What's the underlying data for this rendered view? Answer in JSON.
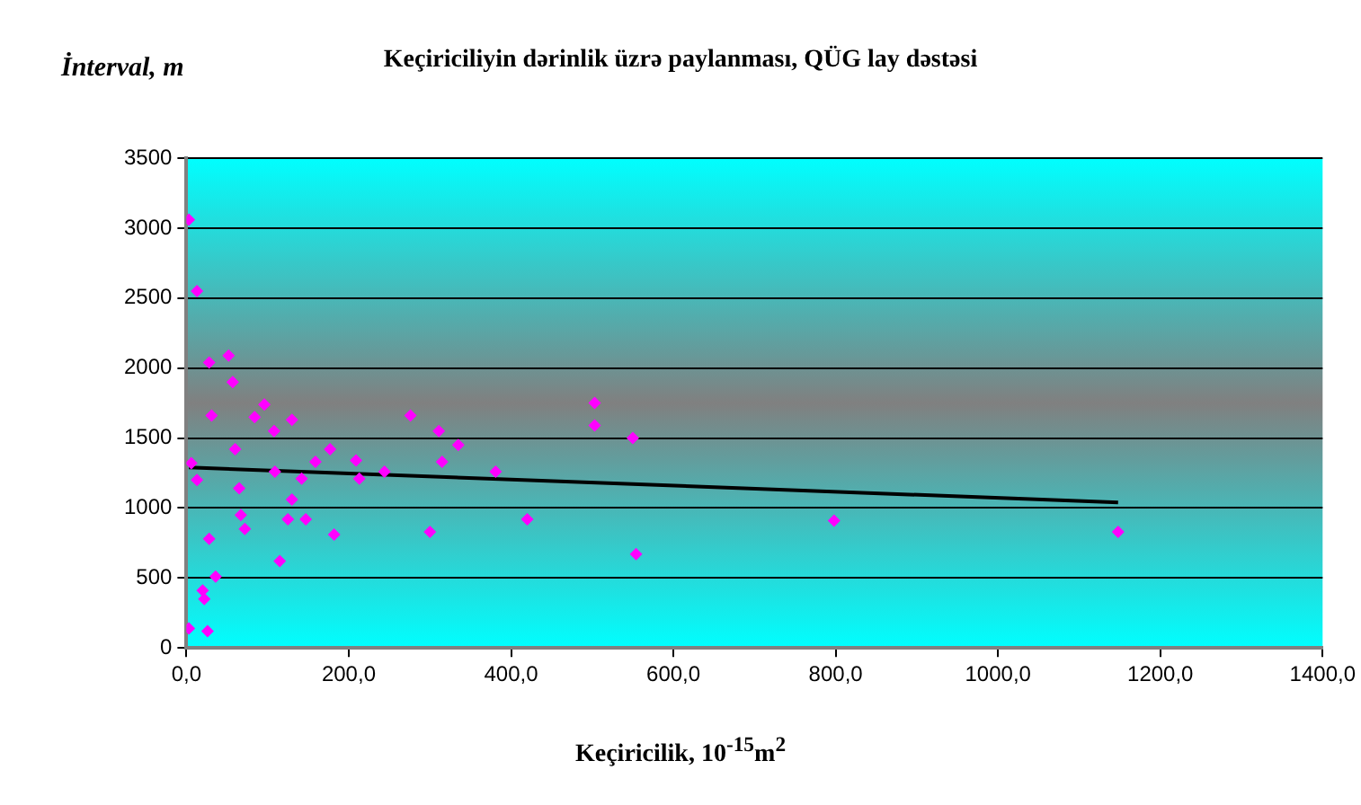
{
  "chart_data": {
    "type": "scatter",
    "title": "Keçiriciliyin dərinlik üzrə paylanması, QÜG lay dəstəsi",
    "xlabel": "Keçiricilik, 10$^{-15}$m$^{2}$",
    "ylabel": "İnterval, m",
    "xlim": [
      0,
      1400
    ],
    "xticks": [
      {
        "value": 0,
        "label": "0,0"
      },
      {
        "value": 200,
        "label": "200,0"
      },
      {
        "value": 400,
        "label": "400,0"
      },
      {
        "value": 600,
        "label": "600,0"
      },
      {
        "value": 800,
        "label": "800,0"
      },
      {
        "value": 1000,
        "label": "1000,0"
      },
      {
        "value": 1200,
        "label": "1200,0"
      },
      {
        "value": 1400,
        "label": "1400,0"
      }
    ],
    "ylim": [
      0,
      3500
    ],
    "yticks": [
      0,
      500,
      1000,
      1500,
      2000,
      2500,
      3000,
      3500
    ],
    "grid": "y",
    "legend": false,
    "series": [
      {
        "color": "#ff00ff",
        "marker": "diamond",
        "x": [
          3,
          13,
          28,
          52,
          57,
          31,
          96,
          84,
          130,
          108,
          60,
          177,
          6,
          13,
          109,
          159,
          142,
          209,
          213,
          244,
          276,
          311,
          315,
          300,
          65,
          130,
          67,
          72,
          125,
          147,
          182,
          28,
          115,
          36,
          20,
          22,
          3,
          26,
          335,
          381,
          420,
          503,
          503,
          550,
          554,
          798,
          1148
        ],
        "values": [
          3060,
          2550,
          2040,
          2090,
          1900,
          1660,
          1740,
          1650,
          1630,
          1550,
          1420,
          1420,
          1320,
          1200,
          1260,
          1330,
          1210,
          1340,
          1210,
          1260,
          1660,
          1550,
          1330,
          830,
          1140,
          1060,
          950,
          850,
          920,
          920,
          810,
          780,
          620,
          510,
          410,
          350,
          140,
          120,
          1450,
          1260,
          920,
          1750,
          1590,
          1500,
          670,
          910,
          830
        ]
      },
      {
        "type": "line",
        "color": "#000000",
        "marker": "none",
        "x": [
          3,
          1148
        ],
        "values": [
          1290,
          1040
        ]
      }
    ]
  }
}
